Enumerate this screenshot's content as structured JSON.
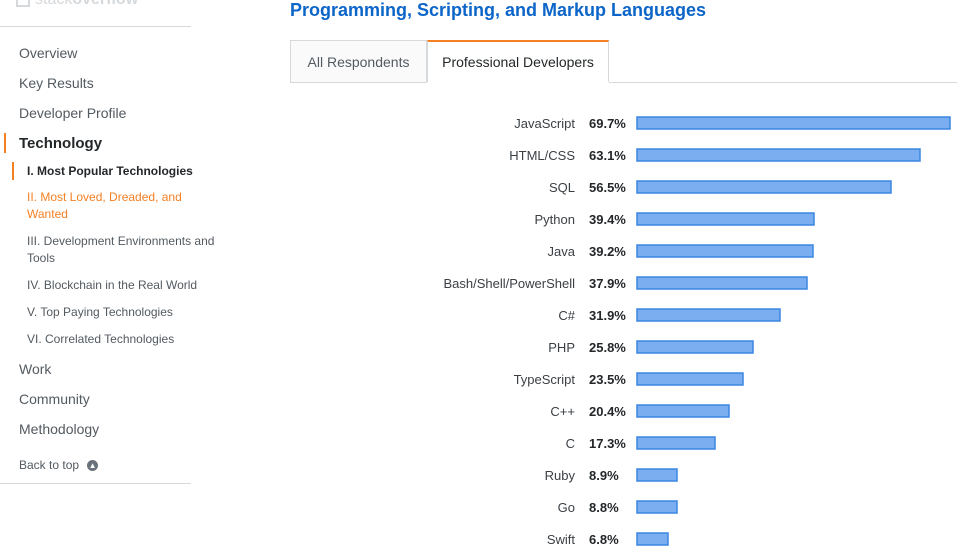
{
  "sidebar": {
    "logo_main": "stack",
    "logo_bold": "overflow",
    "nav": [
      "Overview",
      "Key Results",
      "Developer Profile",
      "Technology"
    ],
    "sub": [
      "I. Most Popular Technologies",
      "II. Most Loved, Dreaded, and Wanted",
      "III. Development Environments and Tools",
      "IV. Blockchain in the Real World",
      "V. Top Paying Technologies",
      "VI. Correlated Technologies"
    ],
    "nav_after": [
      "Work",
      "Community",
      "Methodology"
    ],
    "back_to_top": "Back to top",
    "accent_color": "#f48024"
  },
  "main": {
    "title": "Programming, Scripting, and Markup Languages",
    "tabs": [
      {
        "label": "All Respondents",
        "selected": false
      },
      {
        "label": "Professional Developers",
        "selected": true
      }
    ]
  },
  "chart_data": {
    "type": "bar",
    "orientation": "horizontal",
    "categories": [
      "JavaScript",
      "HTML/CSS",
      "SQL",
      "Python",
      "Java",
      "Bash/Shell/PowerShell",
      "C#",
      "PHP",
      "TypeScript",
      "C++",
      "C",
      "Ruby",
      "Go",
      "Swift"
    ],
    "values": [
      69.7,
      63.1,
      56.5,
      39.4,
      39.2,
      37.9,
      31.9,
      25.8,
      23.5,
      20.4,
      17.3,
      8.9,
      8.8,
      6.8
    ],
    "value_labels": [
      "69.7%",
      "63.1%",
      "56.5%",
      "39.4%",
      "39.2%",
      "37.9%",
      "31.9%",
      "25.8%",
      "23.5%",
      "20.4%",
      "17.3%",
      "8.9%",
      "8.8%",
      "6.8%"
    ],
    "unit": "%",
    "bar_color": "#7aaef0",
    "bar_border_color": "#3a86e0"
  }
}
